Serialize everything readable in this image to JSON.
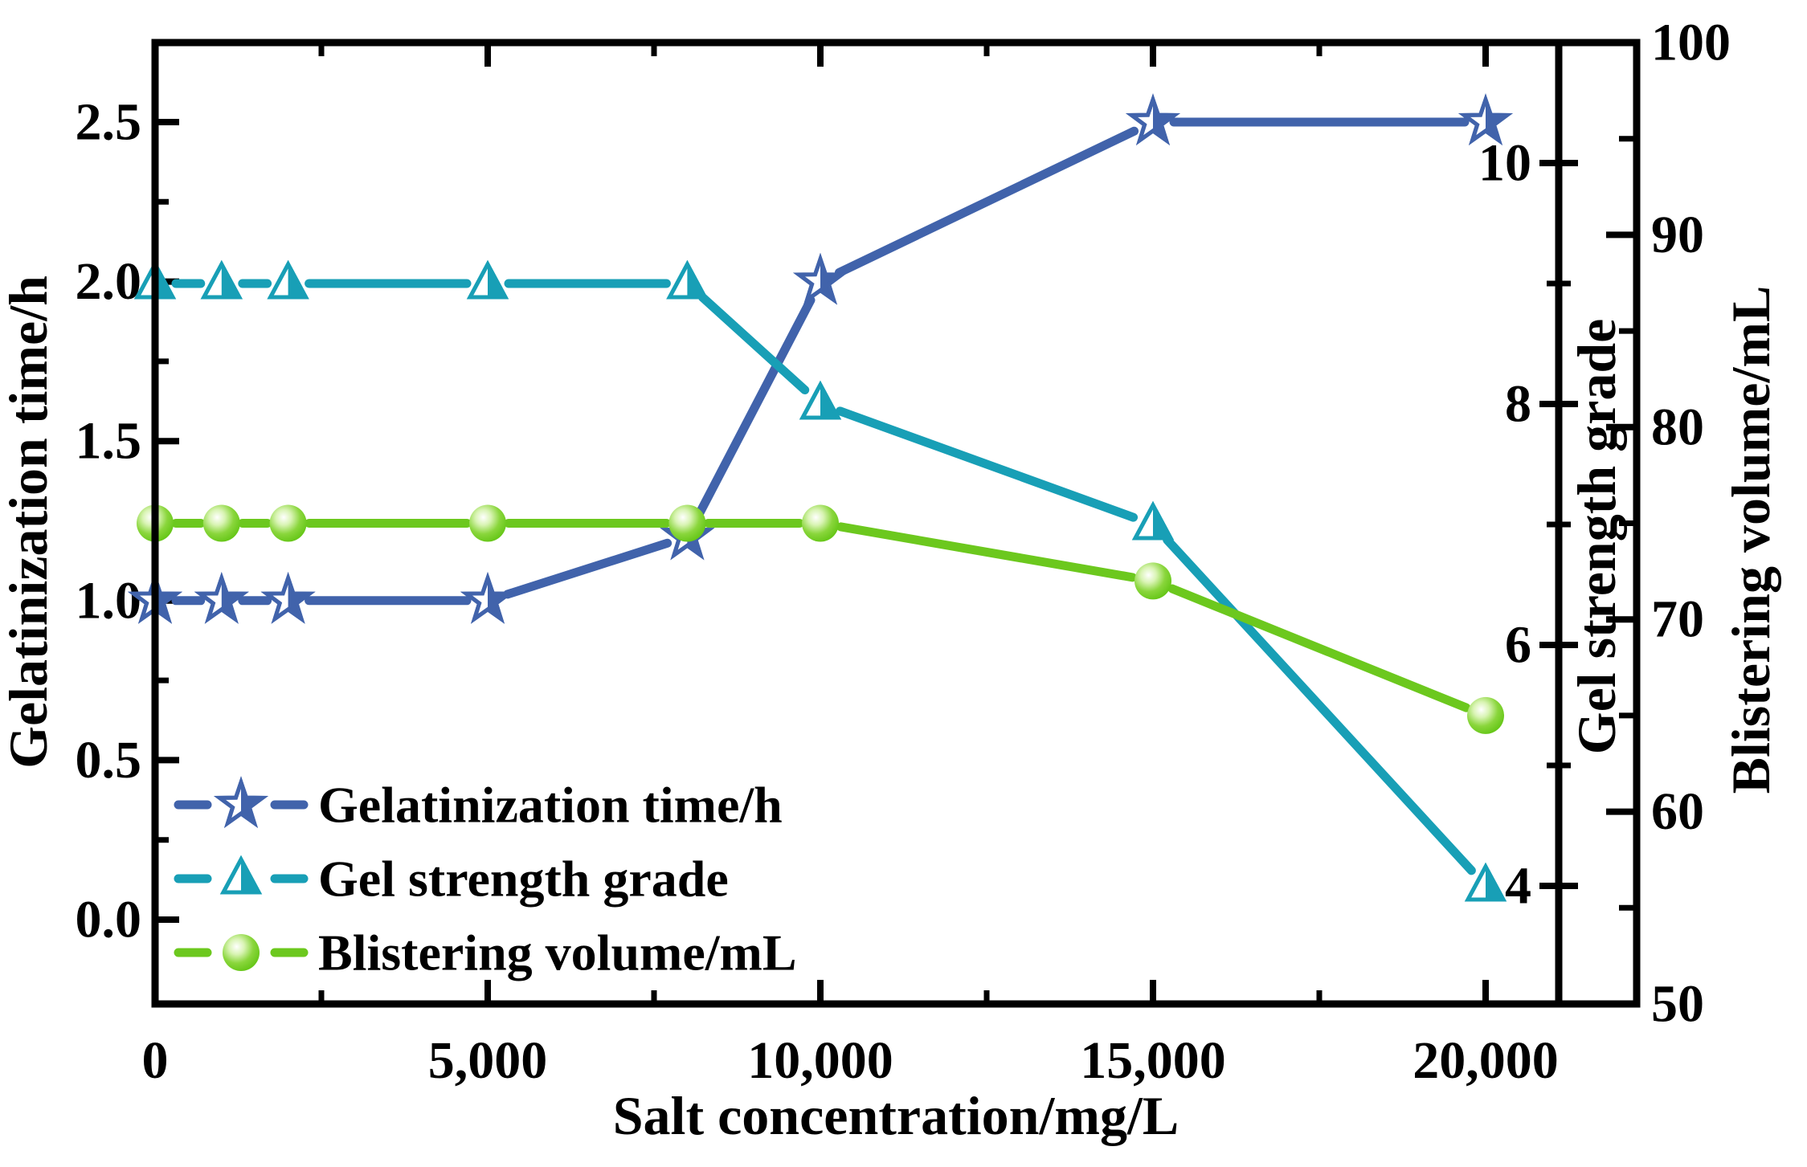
{
  "chart_data": {
    "type": "line",
    "title": "",
    "xlabel": "Salt concentration/mg/L",
    "ylabel_left": "Gelatinization time/h",
    "ylabel_gel": "Gel strength grade",
    "ylabel_blister": "Blistering volume/mL",
    "x": [
      0,
      1000,
      2000,
      5000,
      8000,
      10000,
      15000,
      20000
    ],
    "series": [
      {
        "name": "Gelatinization time/h",
        "axis": "left",
        "marker": "star",
        "color": "#4163ab",
        "values": [
          1.0,
          1.0,
          1.0,
          1.0,
          1.2,
          2.0,
          2.5,
          2.5
        ]
      },
      {
        "name": "Gel strength grade",
        "axis": "gel",
        "marker": "triangle",
        "color": "#189fb6",
        "values": [
          9,
          9,
          9,
          9,
          9,
          8,
          7,
          4
        ]
      },
      {
        "name": "Blistering volume/mL",
        "axis": "blister",
        "marker": "sphere",
        "color": "#6cc81e",
        "values": [
          75,
          75,
          75,
          75,
          75,
          75,
          72,
          65
        ]
      }
    ],
    "axes": {
      "x": {
        "label": "Salt concentration/mg/L",
        "range": [
          0,
          22270
        ],
        "major_ticks": [
          {
            "v": 0,
            "label": "0"
          },
          {
            "v": 5000,
            "label": "5,000"
          },
          {
            "v": 10000,
            "label": "10,000"
          },
          {
            "v": 15000,
            "label": "15,000"
          },
          {
            "v": 20000,
            "label": "20,000"
          }
        ],
        "minor_ticks": [
          2500,
          7500,
          12500,
          17500
        ]
      },
      "left": {
        "label": "Gelatinization time/h",
        "range": [
          -0.27,
          2.77
        ],
        "major_ticks": [
          {
            "v": 0.0,
            "label": "0.0"
          },
          {
            "v": 0.5,
            "label": "0.5"
          },
          {
            "v": 1.0,
            "label": "1.0"
          },
          {
            "v": 1.5,
            "label": "1.5"
          },
          {
            "v": 2.0,
            "label": "2.0"
          },
          {
            "v": 2.5,
            "label": "2.5"
          }
        ],
        "minor_ticks": [
          0.25,
          0.75,
          1.25,
          1.75,
          2.25
        ]
      },
      "gel": {
        "label": "Gel strength grade",
        "range": [
          3.0,
          11.0
        ],
        "major_ticks": [
          {
            "v": 4,
            "label": "4"
          },
          {
            "v": 6,
            "label": "6"
          },
          {
            "v": 8,
            "label": "8"
          },
          {
            "v": 10,
            "label": "10"
          }
        ],
        "minor_ticks": [
          5,
          7,
          9
        ]
      },
      "blister": {
        "label": "Blistering volume/mL",
        "range": [
          50,
          100
        ],
        "major_ticks": [
          {
            "v": 50,
            "label": "50"
          },
          {
            "v": 60,
            "label": "60"
          },
          {
            "v": 70,
            "label": "70"
          },
          {
            "v": 80,
            "label": "80"
          },
          {
            "v": 90,
            "label": "90"
          },
          {
            "v": 100,
            "label": "100"
          }
        ],
        "minor_ticks": [
          55,
          65,
          75,
          85,
          95
        ]
      }
    },
    "legend": {
      "position": "lower-left",
      "entries": [
        "Gelatinization time/h",
        "Gel strength grade",
        "Blistering volume/mL"
      ]
    },
    "colors": {
      "gelatinization": "#4163ab",
      "gel_strength": "#189fb6",
      "blistering": "#6cc81e",
      "axis": "#000000"
    }
  }
}
